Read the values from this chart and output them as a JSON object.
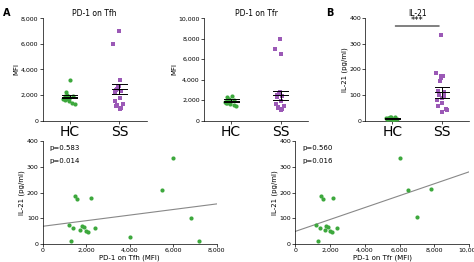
{
  "panel_A1_title": "PD-1 on Tfh",
  "panel_A2_title": "PD-1 on Tfr",
  "panel_B_title": "IL-21",
  "panel_C1_xlabel": "PD-1 on Tfh (MFI)",
  "panel_C2_xlabel": "PD-1 on Tfr (MFI)",
  "ylabel_A": "MFI",
  "ylabel_B": "IL-21 (pg/ml)",
  "ylabel_C": "IL-21 (pg/ml)",
  "color_green": "#3da83d",
  "color_purple": "#9b59b6",
  "color_line": "#888888",
  "A1_HC": [
    1800,
    1900,
    1700,
    2000,
    1950,
    1600,
    2200,
    1850,
    1750,
    3200,
    1500,
    1400,
    1650,
    1300
  ],
  "A1_SS": [
    7000,
    6000,
    3200,
    2700,
    2600,
    2500,
    2400,
    2300,
    1200,
    1100,
    1000,
    900,
    1500,
    1800,
    2200,
    1300
  ],
  "A1_HC_mean": 1880,
  "A1_HC_sem": 120,
  "A1_SS_mean": 2450,
  "A1_SS_sem": 380,
  "A1_ylim": [
    0,
    8000
  ],
  "A1_yticks": [
    0,
    2000,
    4000,
    6000,
    8000
  ],
  "A2_HC": [
    1900,
    2000,
    1800,
    2100,
    2050,
    1700,
    2300,
    1950,
    1850,
    2400,
    1600,
    1500,
    1750,
    1400
  ],
  "A2_SS": [
    8000,
    7000,
    6500,
    2800,
    2700,
    2600,
    2500,
    2400,
    1300,
    1200,
    1100,
    1000,
    1600,
    1900,
    2300,
    1400
  ],
  "A2_HC_mean": 1950,
  "A2_HC_sem": 130,
  "A2_SS_mean": 2450,
  "A2_SS_sem": 420,
  "A2_ylim": [
    0,
    10000
  ],
  "A2_yticks": [
    0,
    2000,
    4000,
    6000,
    8000,
    10000
  ],
  "B_HC": [
    10,
    5,
    8,
    12,
    6,
    4,
    9,
    7,
    11,
    3,
    15,
    13,
    8,
    6
  ],
  "B_SS": [
    335,
    185,
    175,
    175,
    165,
    155,
    115,
    110,
    105,
    100,
    95,
    90,
    80,
    70,
    55,
    45,
    40,
    35
  ],
  "B_HC_mean": 8,
  "B_HC_sem": 1.5,
  "B_SS_mean": 110,
  "B_SS_sem": 20,
  "B_ylim": [
    0,
    400
  ],
  "B_yticks": [
    0,
    100,
    200,
    300,
    400
  ],
  "C1_x": [
    1200,
    1300,
    1400,
    1500,
    1600,
    1700,
    1800,
    1900,
    2000,
    2100,
    2200,
    2400,
    4000,
    5500,
    6000,
    6800,
    7200
  ],
  "C1_y": [
    75,
    10,
    60,
    185,
    175,
    55,
    70,
    65,
    50,
    45,
    180,
    60,
    25,
    210,
    335,
    100,
    10
  ],
  "C1_rho": "p=0.583",
  "C1_p": "p=0.014",
  "C1_xlim": [
    0,
    8000
  ],
  "C1_xticks": [
    0,
    2000,
    4000,
    6000,
    8000
  ],
  "C1_ylim": [
    0,
    400
  ],
  "C1_yticks": [
    0,
    100,
    200,
    300,
    400
  ],
  "C2_x": [
    1200,
    1300,
    1400,
    1500,
    1600,
    1700,
    1800,
    1900,
    2000,
    2100,
    2200,
    2400,
    6000,
    6500,
    7000,
    7800
  ],
  "C2_y": [
    75,
    10,
    60,
    185,
    175,
    55,
    70,
    65,
    50,
    45,
    180,
    60,
    335,
    210,
    105,
    215
  ],
  "C2_rho": "p=0.560",
  "C2_p": "p=0.016",
  "C2_xlim": [
    0,
    10000
  ],
  "C2_xticks": [
    0,
    2000,
    4000,
    6000,
    8000,
    10000
  ],
  "C2_ylim": [
    0,
    400
  ],
  "C2_yticks": [
    0,
    100,
    200,
    300,
    400
  ]
}
